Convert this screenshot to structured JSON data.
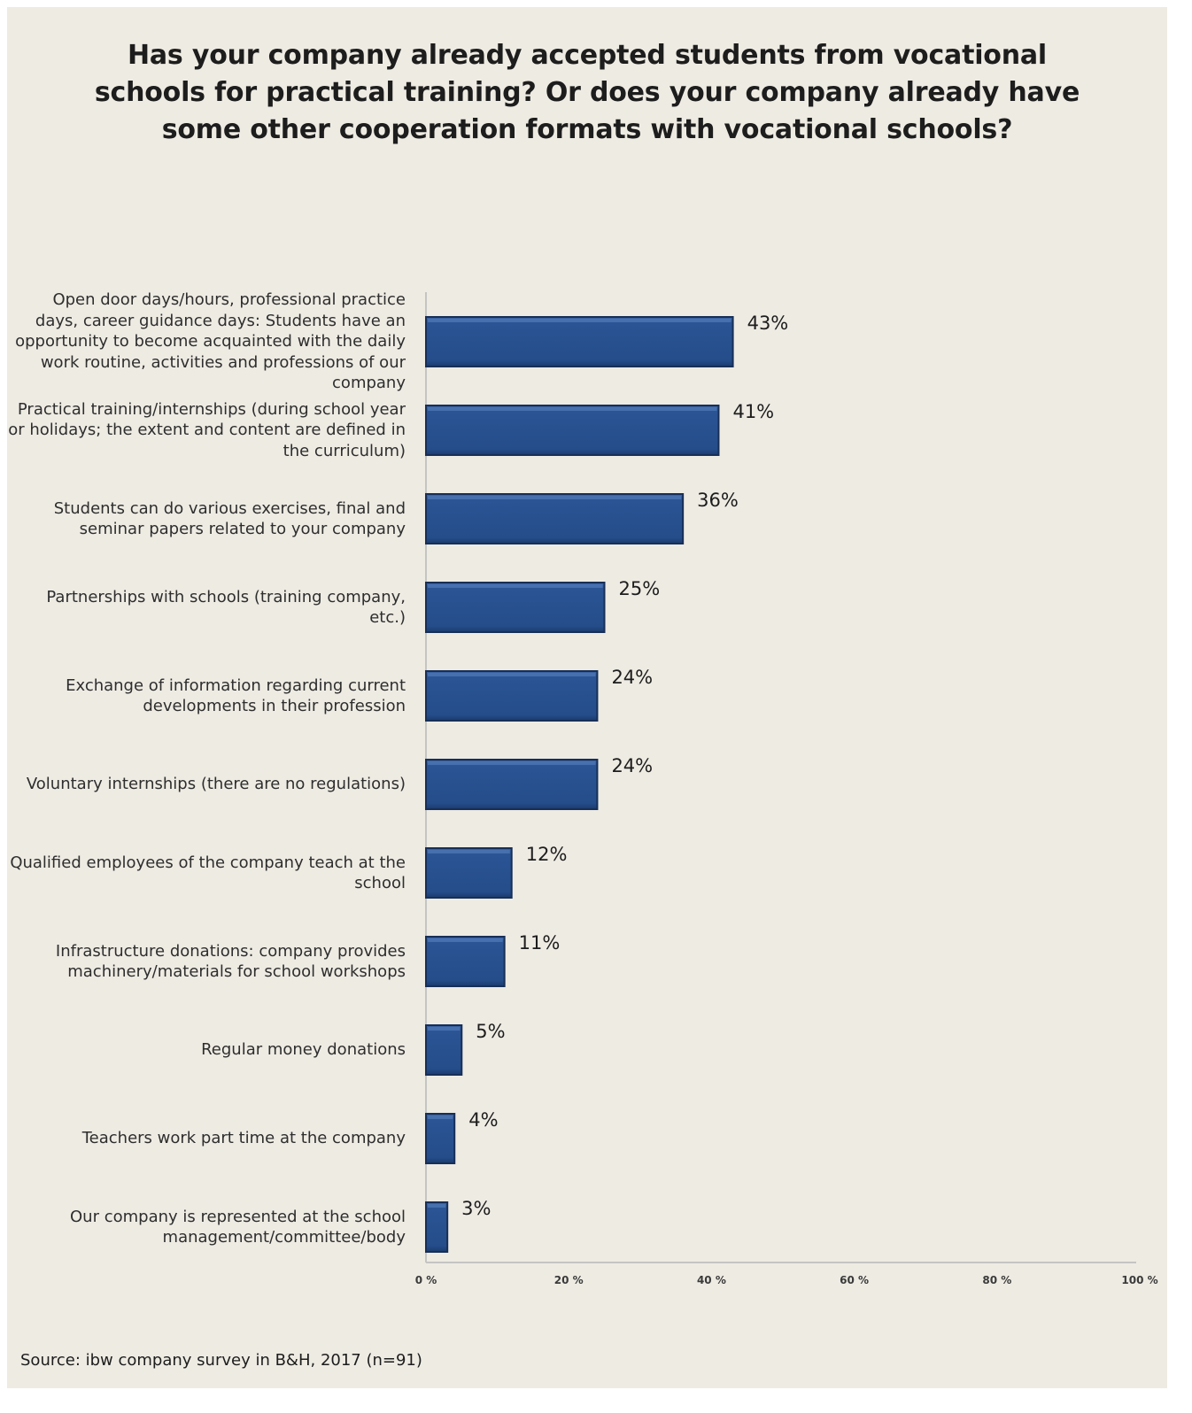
{
  "chart_data": {
    "type": "bar",
    "orientation": "horizontal",
    "title": "Has your company already accepted students from vocational schools for practical training? Or does your company already have some other cooperation formats with vocational schools?",
    "categories": [
      "Open door days/hours, professional practice days, career guidance days: Students have an opportunity to become acquainted with the daily work routine, activities and professions of our company",
      "Practical training/internships (during school year or holidays; the extent and content are defined in the curriculum)",
      "Students can do various exercises, final and seminar papers related to your company",
      "Partnerships with schools (training company, etc.)",
      "Exchange of information regarding current developments in their profession",
      "Voluntary internships (there are no regulations)",
      "Qualified employees of the company teach at the school",
      "Infrastructure donations: company provides machinery/materials for school workshops",
      "Regular money donations",
      "Teachers work part time at the company",
      "Our  company is represented at the school management/committee/body"
    ],
    "values": [
      43,
      41,
      36,
      25,
      24,
      24,
      12,
      11,
      5,
      4,
      3
    ],
    "value_labels": [
      "43%",
      "41%",
      "36%",
      "25%",
      "24%",
      "24%",
      "12%",
      "11%",
      "5%",
      "4%",
      "3%"
    ],
    "xlim": [
      0,
      100
    ],
    "xticks": [
      0,
      20,
      40,
      60,
      80,
      100
    ],
    "xtick_labels": [
      "0 %",
      "20 %",
      "40 %",
      "60 %",
      "80 %",
      "100 %"
    ],
    "grid": false,
    "bar_color": "#27508e",
    "source": "Source: ibw company survey in B&H, 2017 (n=91)"
  },
  "colors": {
    "background": "#eeebe3",
    "bar": "#27508e",
    "bar_edge": "#172f57",
    "axis": "#c4c4c4",
    "text": "#1d1d1d"
  }
}
